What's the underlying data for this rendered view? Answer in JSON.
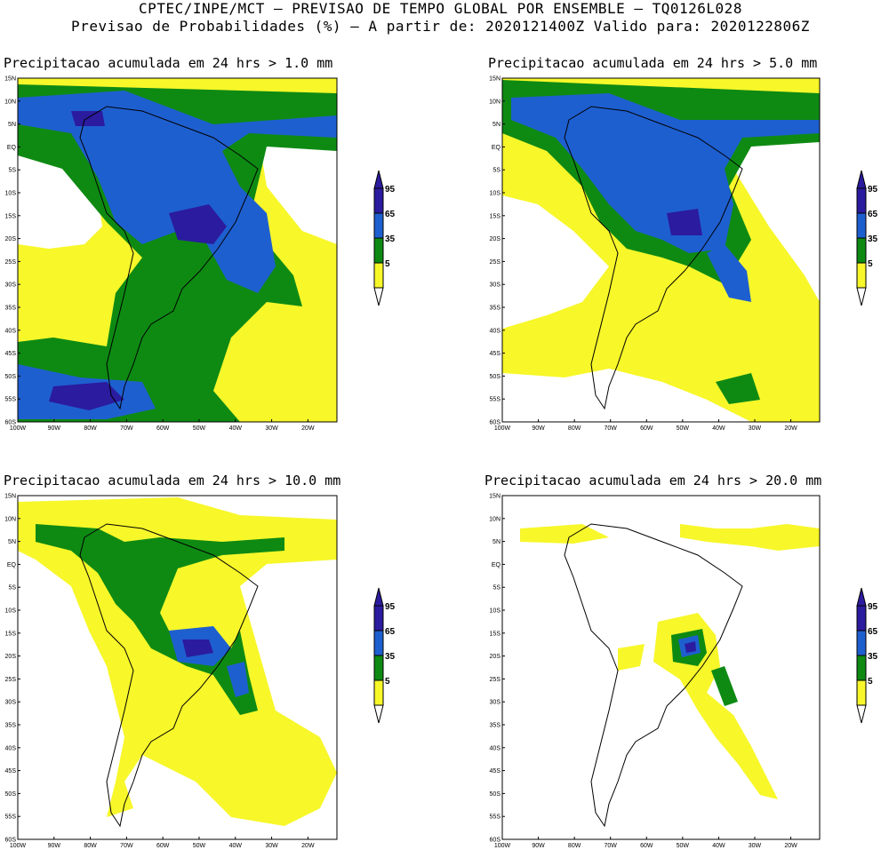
{
  "header": {
    "line1": "CPTEC/INPE/MCT – PREVISAO DE TEMPO GLOBAL POR ENSEMBLE – TQ0126L028",
    "line2": "Previsao de Probabilidades (%) –  A partir de: 2020121400Z  Valido para: 2020122806Z"
  },
  "axes": {
    "lat_labels": [
      "15N",
      "10N",
      "5N",
      "EQ",
      "5S",
      "10S",
      "15S",
      "20S",
      "25S",
      "30S",
      "35S",
      "40S",
      "45S",
      "50S",
      "55S",
      "60S"
    ],
    "lon_labels": [
      "100W",
      "90W",
      "80W",
      "70W",
      "60W",
      "50W",
      "40W",
      "30W",
      "20W"
    ]
  },
  "colorbar": {
    "levels": [
      "95",
      "65",
      "35",
      "5"
    ],
    "colors": [
      "#2b1b9e",
      "#1e5fd0",
      "#0e8a13",
      "#f7f72a"
    ]
  },
  "panels": [
    {
      "title": "Precipitacao acumulada em 24 hrs > 1.0 mm"
    },
    {
      "title": "Precipitacao acumulada em 24 hrs > 5.0 mm"
    },
    {
      "title": "Precipitacao acumulada em 24 hrs > 10.0 mm"
    },
    {
      "title": "Precipitacao acumulada em 24 hrs > 20.0 mm"
    }
  ]
}
